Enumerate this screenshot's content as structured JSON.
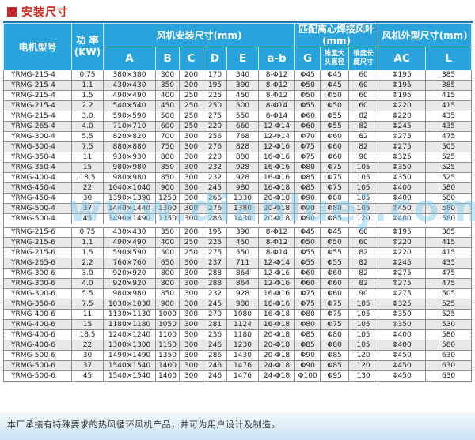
{
  "page": {
    "title": "安装尺寸",
    "watermark": "www.dianluej.com",
    "footer_note": "本厂承接有特殊要求的热风循环风机产品，并可为用户设计及制造。"
  },
  "colors": {
    "header_bg": "#29a3dc",
    "header_top_accent": "#1b74b8",
    "title_red": "#c9231a",
    "row_alt": "#e9e9e9",
    "data_border": "#8c8c8c",
    "watermark_blue": "#86cded",
    "footer_band_blue": "#c9e3f5"
  },
  "table": {
    "col_keys": [
      "model",
      "power",
      "A",
      "B",
      "C",
      "D",
      "E",
      "a_b",
      "G",
      "taper_head_dia",
      "taper_length",
      "AC",
      "L"
    ],
    "headers": {
      "model": "电机型号",
      "power_line1": "功 率",
      "power_line2": "(KW)",
      "group_install": "风机安装尺寸(mm)",
      "group_blade_line1": "匹配离心焊接风叶",
      "group_blade_line2": "(mm)",
      "group_outline": "风机外型尺寸(mm)",
      "sub_A": "A",
      "sub_B": "B",
      "sub_C": "C",
      "sub_D": "D",
      "sub_E": "E",
      "sub_ab": "a-b",
      "sub_G": "G",
      "taper_dia_line1": "锥度大",
      "taper_dia_line2": "头直径",
      "taper_len_line1": "锥度长",
      "taper_len_line2": "度尺寸",
      "sub_AC": "AC",
      "sub_L": "L"
    },
    "sections": [
      {
        "rows": [
          [
            "YRMG-215-4",
            "0.75",
            "380×380",
            "300",
            "200",
            "170",
            "340",
            "8-Φ12",
            "Φ45",
            "Φ45",
            "60",
            "Φ195",
            "385"
          ],
          [
            "YRMG-215-4",
            "1.1",
            "430×430",
            "350",
            "200",
            "195",
            "390",
            "8-Φ12",
            "Φ50",
            "Φ45",
            "60",
            "Φ195",
            "385"
          ],
          [
            "YRMG-215-4",
            "1.5",
            "490×490",
            "400",
            "250",
            "225",
            "450",
            "8-Φ12",
            "Φ50",
            "Φ50",
            "60",
            "Φ195",
            "415"
          ],
          [
            "YRMG-215-4",
            "2.2",
            "540×540",
            "450",
            "250",
            "250",
            "500",
            "8-Φ14",
            "Φ55",
            "Φ50",
            "60",
            "Φ220",
            "415"
          ],
          [
            "YRMG-215-4",
            "3.0",
            "590×590",
            "500",
            "250",
            "275",
            "550",
            "8-Φ14",
            "Φ60",
            "Φ55",
            "82",
            "Φ220",
            "435"
          ],
          [
            "YRMG-265-4",
            "4.0",
            "710×710",
            "600",
            "250",
            "220",
            "660",
            "12-Φ14",
            "Φ60",
            "Φ55",
            "82",
            "Φ245",
            "435"
          ],
          [
            "YRMG-300-4",
            "5.5",
            "820×820",
            "700",
            "300",
            "256",
            "768",
            "12-Φ14",
            "Φ70",
            "Φ60",
            "82",
            "Φ275",
            "475"
          ],
          [
            "YRMG-300-4",
            "7.5",
            "880×880",
            "750",
            "300",
            "276",
            "828",
            "12-Φ16",
            "Φ75",
            "Φ60",
            "82",
            "Φ275",
            "505"
          ],
          [
            "YRMG-350-4",
            "11",
            "930×930",
            "800",
            "300",
            "220",
            "880",
            "16-Φ16",
            "Φ75",
            "Φ60",
            "90",
            "Φ325",
            "525"
          ],
          [
            "YRMG-350-4",
            "15",
            "980×980",
            "850",
            "300",
            "232",
            "928",
            "16-Φ16",
            "Φ80",
            "Φ75",
            "105",
            "Φ350",
            "525"
          ],
          [
            "YRMG-400-4",
            "18.5",
            "980×980",
            "850",
            "300",
            "232",
            "928",
            "16-Φ16",
            "Φ85",
            "Φ75",
            "105",
            "Φ350",
            "525"
          ],
          [
            "YRMG-450-4",
            "22",
            "1040×1040",
            "900",
            "300",
            "245",
            "980",
            "16-Φ18",
            "Φ85",
            "Φ75",
            "105",
            "Φ400",
            "580"
          ],
          [
            "YRMG-450-4",
            "30",
            "1390×1390",
            "1250",
            "300",
            "266",
            "1330",
            "20-Φ18",
            "Φ90",
            "Φ80",
            "105",
            "Φ400",
            "580"
          ],
          [
            "YRMG-500-4",
            "37",
            "1440×1440",
            "1300",
            "300",
            "276",
            "1380",
            "20-Φ18",
            "Φ90",
            "Φ80",
            "105",
            "Φ450",
            "580"
          ],
          [
            "YRMG-500-4",
            "45",
            "1490×1490",
            "1350",
            "300",
            "286",
            "1430",
            "20-Φ18",
            "Φ90",
            "Φ85",
            "120",
            "Φ480",
            "580"
          ]
        ]
      },
      {
        "rows": [
          [
            "YRMG-215-6",
            "0.75",
            "430×430",
            "350",
            "200",
            "195",
            "390",
            "8-Φ12",
            "Φ45",
            "Φ45",
            "60",
            "Φ195",
            "385"
          ],
          [
            "YRMG-215-6",
            "1.1",
            "490×490",
            "400",
            "250",
            "225",
            "450",
            "8-Φ12",
            "Φ50",
            "Φ50",
            "60",
            "Φ220",
            "415"
          ],
          [
            "YRMG-215-6",
            "1.5",
            "590×590",
            "500",
            "250",
            "275",
            "550",
            "8-Φ14",
            "Φ55",
            "Φ55",
            "82",
            "Φ220",
            "415"
          ],
          [
            "YRMG-265-6",
            "2.2",
            "760×760",
            "650",
            "300",
            "237",
            "711",
            "12-Φ14",
            "Φ55",
            "Φ55",
            "82",
            "Φ245",
            "435"
          ],
          [
            "YRMG-300-6",
            "3.0",
            "920×920",
            "800",
            "300",
            "288",
            "864",
            "12-Φ16",
            "Φ60",
            "Φ60",
            "82",
            "Φ275",
            "475"
          ],
          [
            "YRMG-300-6",
            "4.0",
            "920×920",
            "800",
            "300",
            "288",
            "864",
            "12-Φ16",
            "Φ60",
            "Φ60",
            "82",
            "Φ275",
            "475"
          ],
          [
            "YRMG-300-6",
            "5.5",
            "980×980",
            "850",
            "300",
            "232",
            "928",
            "16-Φ16",
            "Φ75",
            "Φ60",
            "90",
            "Φ275",
            "505"
          ],
          [
            "YRMG-350-6",
            "7.5",
            "1030×1030",
            "900",
            "300",
            "245",
            "980",
            "16-Φ16",
            "Φ75",
            "Φ75",
            "105",
            "Φ325",
            "525"
          ],
          [
            "YRMG-400-6",
            "11",
            "1130×1130",
            "1000",
            "300",
            "270",
            "1080",
            "16-Φ18",
            "Φ80",
            "Φ75",
            "105",
            "Φ350",
            "525"
          ],
          [
            "YRMG-400-6",
            "15",
            "1180×1180",
            "1050",
            "300",
            "281",
            "1124",
            "16-Φ18",
            "Φ80",
            "Φ75",
            "105",
            "Φ350",
            "530"
          ],
          [
            "YRMG-400-6",
            "18.5",
            "1240×1240",
            "1100",
            "300",
            "236",
            "1180",
            "20-Φ18",
            "Φ85",
            "Φ80",
            "105",
            "Φ400",
            "580"
          ],
          [
            "YRMG-400-6",
            "22",
            "1300×1300",
            "1150",
            "300",
            "246",
            "1230",
            "20-Φ18",
            "Φ85",
            "Φ80",
            "105",
            "Φ400",
            "580"
          ],
          [
            "YRMG-500-6",
            "30",
            "1490×1490",
            "1350",
            "300",
            "286",
            "1430",
            "20-Φ18",
            "Φ90",
            "Φ85",
            "120",
            "Φ450",
            "630"
          ],
          [
            "YRMG-500-6",
            "37",
            "1540×1540",
            "1400",
            "300",
            "246",
            "1476",
            "24-Φ18",
            "Φ90",
            "Φ85",
            "120",
            "Φ450",
            "630"
          ],
          [
            "YRMG-500-6",
            "45",
            "1540×1540",
            "1400",
            "300",
            "246",
            "1476",
            "24-Φ18",
            "Φ100",
            "Φ95",
            "130",
            "Φ450",
            "630"
          ]
        ]
      }
    ]
  }
}
